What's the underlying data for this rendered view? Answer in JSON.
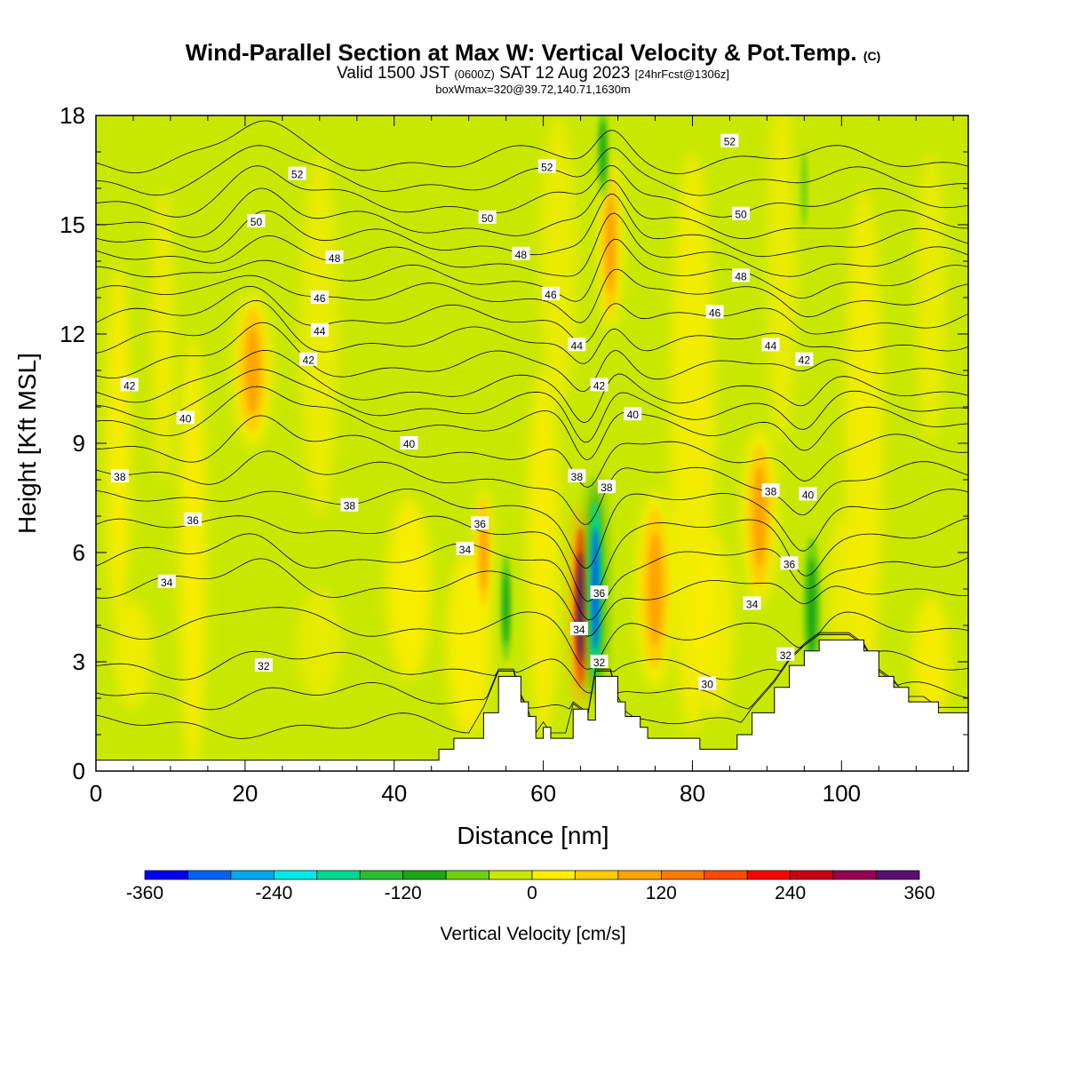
{
  "header": {
    "title": "Wind-Parallel Section at Max W: Vertical Velocity & Pot.Temp.",
    "title_mark": "(C)",
    "subtitle_a": "Valid 1500 JST",
    "subtitle_b": "(0600Z)",
    "subtitle_c": "SAT 12 Aug 2023",
    "subtitle_d": "[24hrFcst@1306z]",
    "subtitle2": "boxWmax=320@39.72,140.71,1630m"
  },
  "chart_data": {
    "type": "heatmap",
    "xlabel": "Distance [nm]",
    "ylabel": "Height [Kft MSL]",
    "xlim": [
      0,
      117
    ],
    "ylim": [
      0,
      18
    ],
    "x_ticks": [
      0,
      20,
      40,
      60,
      80,
      100
    ],
    "y_ticks": [
      0,
      3,
      6,
      9,
      12,
      15,
      18
    ],
    "grid": false,
    "colorbar": {
      "label": "Vertical Velocity [cm/s]",
      "placement": "bottom",
      "ticks": [
        -360,
        -240,
        -120,
        0,
        120,
        240,
        360
      ],
      "bounds": [
        -360,
        360
      ],
      "colors": [
        "#0000ee",
        "#0060f0",
        "#00a8f0",
        "#00e8e8",
        "#00d890",
        "#28c030",
        "#1aa818",
        "#70d010",
        "#c8e800",
        "#ffee00",
        "#ffcc00",
        "#ffa400",
        "#ff7a00",
        "#ff4a00",
        "#ff0000",
        "#c80014",
        "#960050",
        "#5a1070"
      ]
    },
    "background_value": "slightly positive (0 to 40 cm/s)",
    "updraft_max_cm_s": 320,
    "updraft_location_nm": 65,
    "terrain_kft": [
      [
        0,
        0.3
      ],
      [
        45,
        0.3
      ],
      [
        46,
        0.6
      ],
      [
        48,
        0.9
      ],
      [
        50,
        0.9
      ],
      [
        52,
        1.6
      ],
      [
        54,
        2.6
      ],
      [
        56,
        2.6
      ],
      [
        57,
        1.9
      ],
      [
        58,
        1.5
      ],
      [
        59,
        0.9
      ],
      [
        60,
        1.2
      ],
      [
        61,
        0.9
      ],
      [
        63,
        0.9
      ],
      [
        64,
        1.7
      ],
      [
        66,
        1.4
      ],
      [
        67,
        2.6
      ],
      [
        69,
        2.6
      ],
      [
        70,
        1.9
      ],
      [
        71,
        1.5
      ],
      [
        73,
        1.2
      ],
      [
        74,
        0.9
      ],
      [
        80,
        0.9
      ],
      [
        81,
        0.6
      ],
      [
        85,
        0.6
      ],
      [
        86,
        1.0
      ],
      [
        88,
        1.6
      ],
      [
        91,
        2.3
      ],
      [
        93,
        2.9
      ],
      [
        95,
        3.3
      ],
      [
        97,
        3.6
      ],
      [
        101,
        3.6
      ],
      [
        103,
        3.3
      ],
      [
        105,
        2.6
      ],
      [
        107,
        2.3
      ],
      [
        109,
        1.9
      ],
      [
        111,
        1.9
      ],
      [
        113,
        1.6
      ],
      [
        117,
        1.6
      ]
    ],
    "updrafts": [
      {
        "x": 21,
        "y": 11,
        "w": 80
      },
      {
        "x": 65,
        "y": 4.5,
        "w": 320
      },
      {
        "x": 75,
        "y": 5,
        "w": 110
      },
      {
        "x": 89,
        "y": 7,
        "w": 110
      },
      {
        "x": 69,
        "y": 14.5,
        "w": 100
      },
      {
        "x": 52,
        "y": 6,
        "w": 90
      }
    ],
    "downdrafts": [
      {
        "x": 67,
        "y": 5,
        "w": -300
      },
      {
        "x": 96,
        "y": 4.5,
        "w": -110
      },
      {
        "x": 55,
        "y": 4.5,
        "w": -90
      },
      {
        "x": 68,
        "y": 17,
        "w": -90
      },
      {
        "x": 95,
        "y": 16,
        "w": -70
      }
    ],
    "theta_contours": [
      {
        "value": 30,
        "base_kft": 1.2
      },
      {
        "value": 32,
        "base_kft": 2.9
      },
      {
        "value": 34,
        "base_kft": 5.1
      },
      {
        "value": 36,
        "base_kft": 6.6
      },
      {
        "value": 38,
        "base_kft": 8.1
      },
      {
        "value": 40,
        "base_kft": 9.6
      },
      {
        "value": 42,
        "base_kft": 10.5
      },
      {
        "value": 44,
        "base_kft": 11.8
      },
      {
        "value": 46,
        "base_kft": 13.0
      },
      {
        "value": 48,
        "base_kft": 14.0
      },
      {
        "value": 50,
        "base_kft": 15.0
      },
      {
        "value": 52,
        "base_kft": 16.2
      }
    ],
    "contour_labels": [
      {
        "text": "52",
        "x": 27,
        "y": 16.4
      },
      {
        "text": "52",
        "x": 60.5,
        "y": 16.6
      },
      {
        "text": "52",
        "x": 85,
        "y": 17.3
      },
      {
        "text": "50",
        "x": 21.5,
        "y": 15.1
      },
      {
        "text": "50",
        "x": 52.5,
        "y": 15.2
      },
      {
        "text": "50",
        "x": 86.5,
        "y": 15.3
      },
      {
        "text": "48",
        "x": 32,
        "y": 14.1
      },
      {
        "text": "48",
        "x": 57,
        "y": 14.2
      },
      {
        "text": "48",
        "x": 86.5,
        "y": 13.6
      },
      {
        "text": "46",
        "x": 30,
        "y": 13.0
      },
      {
        "text": "46",
        "x": 61,
        "y": 13.1
      },
      {
        "text": "46",
        "x": 83,
        "y": 12.6
      },
      {
        "text": "44",
        "x": 30,
        "y": 12.1
      },
      {
        "text": "44",
        "x": 64.5,
        "y": 11.7
      },
      {
        "text": "44",
        "x": 90.5,
        "y": 11.7
      },
      {
        "text": "42",
        "x": 4.5,
        "y": 10.6
      },
      {
        "text": "42",
        "x": 28.5,
        "y": 11.3
      },
      {
        "text": "42",
        "x": 67.5,
        "y": 10.6
      },
      {
        "text": "42",
        "x": 95,
        "y": 11.3
      },
      {
        "text": "40",
        "x": 12,
        "y": 9.7
      },
      {
        "text": "40",
        "x": 42,
        "y": 9.0
      },
      {
        "text": "40",
        "x": 72,
        "y": 9.8
      },
      {
        "text": "40",
        "x": 95.5,
        "y": 7.6
      },
      {
        "text": "38",
        "x": 3.2,
        "y": 8.1
      },
      {
        "text": "38",
        "x": 34,
        "y": 7.3
      },
      {
        "text": "38",
        "x": 64.5,
        "y": 8.1
      },
      {
        "text": "38",
        "x": 68.5,
        "y": 7.8
      },
      {
        "text": "38",
        "x": 90.5,
        "y": 7.7
      },
      {
        "text": "36",
        "x": 13,
        "y": 6.9
      },
      {
        "text": "36",
        "x": 51.5,
        "y": 6.8
      },
      {
        "text": "36",
        "x": 67.5,
        "y": 4.9
      },
      {
        "text": "36",
        "x": 93,
        "y": 5.7
      },
      {
        "text": "34",
        "x": 9.5,
        "y": 5.2
      },
      {
        "text": "34",
        "x": 49.5,
        "y": 6.1
      },
      {
        "text": "34",
        "x": 64.8,
        "y": 3.9
      },
      {
        "text": "34",
        "x": 88,
        "y": 4.6
      },
      {
        "text": "32",
        "x": 22.5,
        "y": 2.9
      },
      {
        "text": "32",
        "x": 67.5,
        "y": 3.0
      },
      {
        "text": "32",
        "x": 92.5,
        "y": 3.2
      },
      {
        "text": "30",
        "x": 82,
        "y": 2.4
      }
    ]
  }
}
